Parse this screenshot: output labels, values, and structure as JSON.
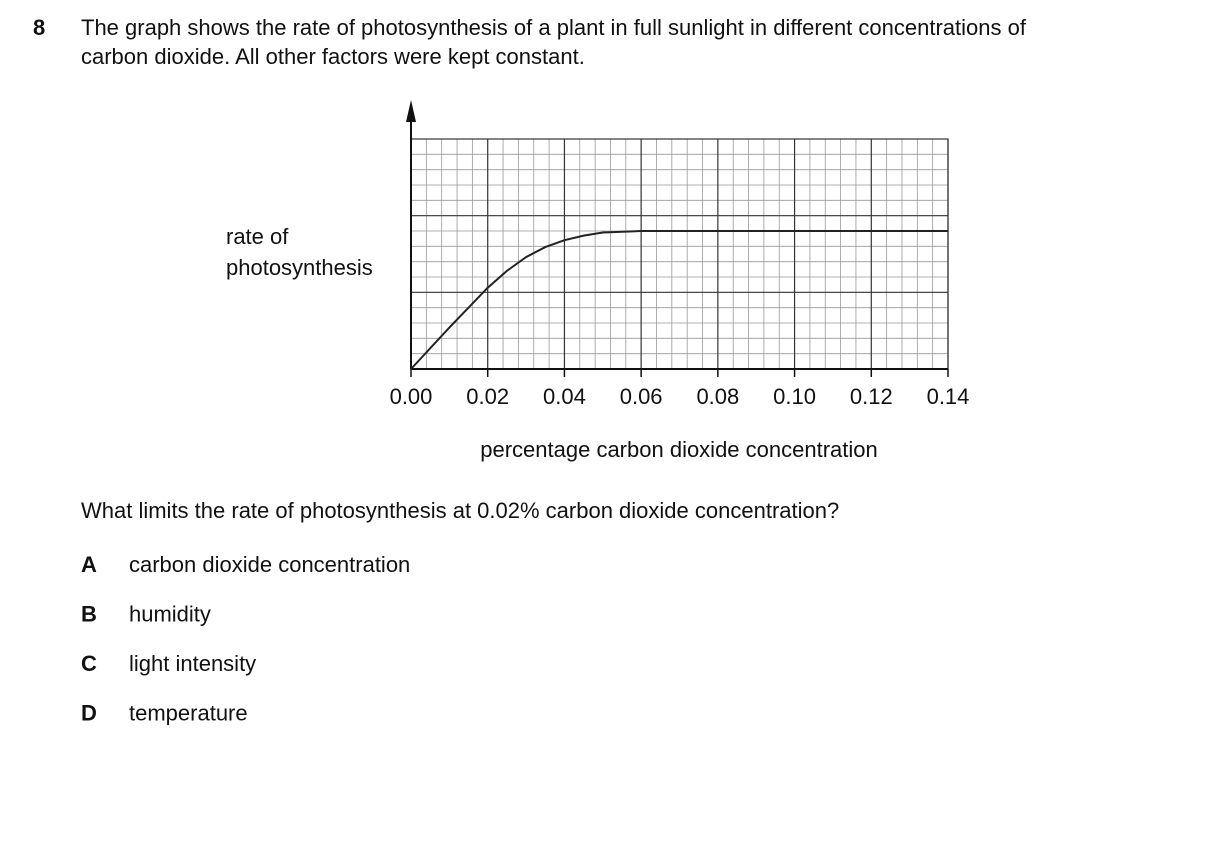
{
  "question": {
    "number": "8",
    "stem": [
      "The graph shows the rate of photosynthesis of a plant in full sunlight in different concentrations of",
      "carbon dioxide. All other factors were kept constant."
    ]
  },
  "chart_data": {
    "type": "line",
    "ylabel": [
      "rate of",
      "photosynthesis"
    ],
    "xlabel": "percentage carbon dioxide concentration",
    "x": [
      0,
      0.01,
      0.02,
      0.025,
      0.03,
      0.035,
      0.04,
      0.045,
      0.05,
      0.06,
      0.08,
      0.1,
      0.12,
      0.14
    ],
    "series": [
      {
        "color": "#222222",
        "values": [
          0,
          2.7,
          5.3,
          6.4,
          7.3,
          7.95,
          8.4,
          8.7,
          8.9,
          9,
          9,
          9,
          9,
          9
        ]
      }
    ],
    "xlim": [
      0,
      0.14
    ],
    "ylim": [
      0,
      15
    ],
    "xticks": [
      {
        "value": 0,
        "label": "0.00"
      },
      {
        "value": 0.02,
        "label": "0.02"
      },
      {
        "value": 0.04,
        "label": "0.04"
      },
      {
        "value": 0.06,
        "label": "0.06"
      },
      {
        "value": 0.08,
        "label": "0.08"
      },
      {
        "value": 0.1,
        "label": "0.10"
      },
      {
        "value": 0.12,
        "label": "0.12"
      },
      {
        "value": 0.14,
        "label": "0.14"
      }
    ],
    "grid": true
  },
  "prompt": "What limits the rate of photosynthesis at 0.02% carbon dioxide concentration?",
  "options": [
    {
      "letter": "A",
      "text": "carbon dioxide concentration"
    },
    {
      "letter": "B",
      "text": "humidity"
    },
    {
      "letter": "C",
      "text": "light intensity"
    },
    {
      "letter": "D",
      "text": "temperature"
    }
  ]
}
